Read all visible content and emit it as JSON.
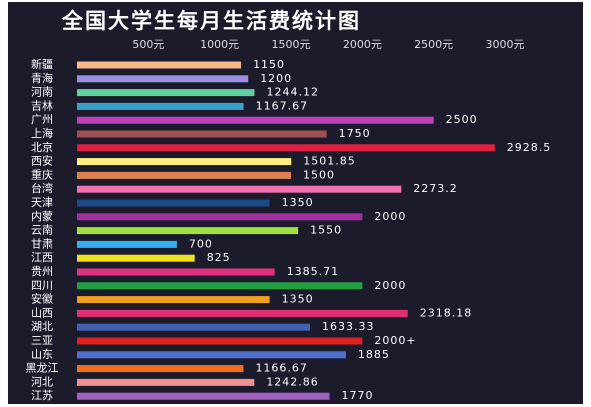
{
  "chart_data": {
    "type": "bar",
    "orientation": "horizontal",
    "title": "全国大学生每月生活费统计图",
    "categories": [
      "新疆",
      "青海",
      "河南",
      "吉林",
      "广州",
      "上海",
      "北京",
      "西安",
      "重庆",
      "台湾",
      "天津",
      "内蒙",
      "云南",
      "甘肃",
      "江西",
      "贵州",
      "四川",
      "安徽",
      "山西",
      "湖北",
      "三亚",
      "山东",
      "黑龙江",
      "河北",
      "江苏"
    ],
    "values": [
      1150,
      1200,
      1244.12,
      1167.67,
      2500,
      1750,
      2928.5,
      1501.85,
      1500,
      2273.2,
      1350,
      2000,
      1550,
      700,
      825,
      1385.71,
      2000,
      1350,
      2318.18,
      1633.33,
      2000,
      1885,
      1166.67,
      1242.86,
      1770
    ],
    "value_labels": [
      "1150",
      "1200",
      "1244.12",
      "1167.67",
      "2500",
      "1750",
      "2928.5",
      "1501.85",
      "1500",
      "2273.2",
      "1350",
      "2000",
      "1550",
      "700",
      "825",
      "1385.71",
      "2000",
      "1350",
      "2318.18",
      "1633.33",
      "2000+",
      "1885",
      "1166.67",
      "1242.86",
      "1770"
    ],
    "colors": [
      "#f7b98a",
      "#9a8fe0",
      "#5fd0a0",
      "#3aa0c8",
      "#c040c0",
      "#a05050",
      "#e02040",
      "#fff080",
      "#e08050",
      "#f070b0",
      "#1a4a8a",
      "#a030a0",
      "#a0e040",
      "#30b0f0",
      "#f0e020",
      "#e03080",
      "#20a040",
      "#f0a020",
      "#e03070",
      "#4060b0",
      "#e02020",
      "#5070d0",
      "#f07020",
      "#f09090",
      "#a060c0"
    ],
    "xlim": [
      0,
      3000
    ],
    "xticks": [
      {
        "value": 500,
        "label": "500元"
      },
      {
        "value": 1000,
        "label": "1000元"
      },
      {
        "value": 1500,
        "label": "1500元"
      },
      {
        "value": 2000,
        "label": "2000元"
      },
      {
        "value": 2500,
        "label": "2500元"
      },
      {
        "value": 3000,
        "label": "3000元"
      }
    ]
  }
}
